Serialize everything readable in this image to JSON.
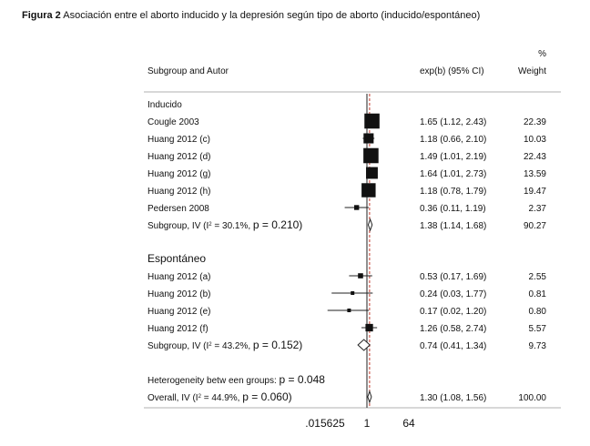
{
  "caption": {
    "label": "Figura 2",
    "text": "Asociación entre el aborto inducido y la depresión según tipo de aborto (inducido/espontáneo)"
  },
  "chart_data": {
    "type": "forest",
    "headers": {
      "study": "Subgroup and Autor",
      "ci": "exp(b) (95% CI)",
      "weight_pct": "%",
      "weight": "Weight"
    },
    "x_scale": "log",
    "xlim": [
      0.015625,
      64
    ],
    "x_ticks": [
      ".015625",
      "1",
      "64"
    ],
    "null_line": 1,
    "overall_line": 1.3,
    "groups": [
      {
        "name": "Inducido",
        "studies": [
          {
            "label": "Cougle 2003",
            "est": 1.65,
            "lo": 1.12,
            "hi": 2.43,
            "ci_text": "1.65 (1.12, 2.43)",
            "weight": "22.39",
            "w": 22.39
          },
          {
            "label": "Huang 2012 (c)",
            "est": 1.18,
            "lo": 0.66,
            "hi": 2.1,
            "ci_text": "1.18 (0.66, 2.10)",
            "weight": "10.03",
            "w": 10.03
          },
          {
            "label": "Huang 2012 (d)",
            "est": 1.49,
            "lo": 1.01,
            "hi": 2.19,
            "ci_text": "1.49 (1.01, 2.19)",
            "weight": "22.43",
            "w": 22.43
          },
          {
            "label": "Huang 2012 (g)",
            "est": 1.64,
            "lo": 1.01,
            "hi": 2.73,
            "ci_text": "1.64 (1.01, 2.73)",
            "weight": "13.59",
            "w": 13.59
          },
          {
            "label": "Huang 2012 (h)",
            "est": 1.18,
            "lo": 0.78,
            "hi": 1.79,
            "ci_text": "1.18 (0.78, 1.79)",
            "weight": "19.47",
            "w": 19.47
          },
          {
            "label": "Pedersen 2008",
            "est": 0.36,
            "lo": 0.11,
            "hi": 1.19,
            "ci_text": "0.36 (0.11, 1.19)",
            "weight": "2.37",
            "w": 2.37
          }
        ],
        "subtotal": {
          "label_a": "Subgroup, IV (I",
          "label_sup": "2",
          "label_b": " = 30.1%, ",
          "p_text": "p = 0.210)",
          "est": 1.38,
          "lo": 1.14,
          "hi": 1.68,
          "ci_text": "1.38 (1.14, 1.68)",
          "weight": "90.27"
        }
      },
      {
        "name": "Espontáneo",
        "studies": [
          {
            "label": "Huang 2012 (a)",
            "est": 0.53,
            "lo": 0.17,
            "hi": 1.69,
            "ci_text": "0.53 (0.17, 1.69)",
            "weight": "2.55",
            "w": 2.55
          },
          {
            "label": "Huang 2012 (b)",
            "est": 0.24,
            "lo": 0.03,
            "hi": 1.77,
            "ci_text": "0.24 (0.03, 1.77)",
            "weight": "0.81",
            "w": 0.81
          },
          {
            "label": "Huang 2012 (e)",
            "est": 0.17,
            "lo": 0.02,
            "hi": 1.2,
            "ci_text": "0.17 (0.02, 1.20)",
            "weight": "0.80",
            "w": 0.8
          },
          {
            "label": "Huang 2012 (f)",
            "est": 1.26,
            "lo": 0.58,
            "hi": 2.74,
            "ci_text": "1.26 (0.58, 2.74)",
            "weight": "5.57",
            "w": 5.57
          }
        ],
        "subtotal": {
          "label_a": "Subgroup, IV (I",
          "label_sup": "2",
          "label_b": " = 43.2%, ",
          "p_text": "p = 0.152)",
          "est": 0.74,
          "lo": 0.41,
          "hi": 1.34,
          "ci_text": "0.74 (0.41, 1.34)",
          "weight": "9.73"
        }
      }
    ],
    "heterogeneity": {
      "label": "Heterogeneity betw een groups: ",
      "p_text": "p = 0.048"
    },
    "overall": {
      "label_a": "Overall, IV (I",
      "label_sup": "2",
      "label_b": " = 44.9%, ",
      "p_text": "p = 0.060)",
      "est": 1.3,
      "lo": 1.08,
      "hi": 1.56,
      "ci_text": "1.30 (1.08, 1.56)",
      "weight": "100.00"
    }
  }
}
